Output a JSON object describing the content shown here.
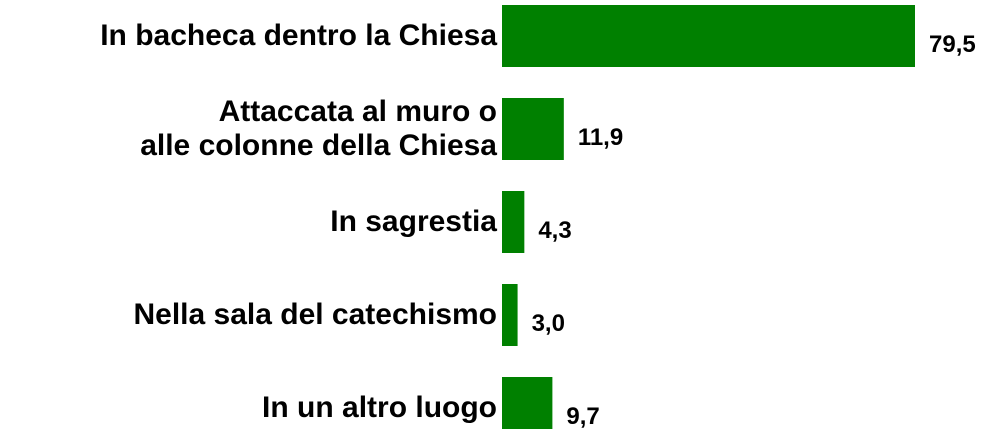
{
  "chart_data": {
    "type": "hbar",
    "categories": [
      "In bacheca dentro la Chiesa",
      "Attaccata al muro o\nalle colonne della Chiesa",
      "In sagrestia",
      "Nella sala del catechismo",
      "In un altro luogo"
    ],
    "values": [
      79.5,
      11.9,
      4.3,
      3.0,
      9.7
    ],
    "value_labels": [
      "79,5",
      "11,9",
      "4,3",
      "3,0",
      "9,7"
    ],
    "color": "#008000"
  }
}
